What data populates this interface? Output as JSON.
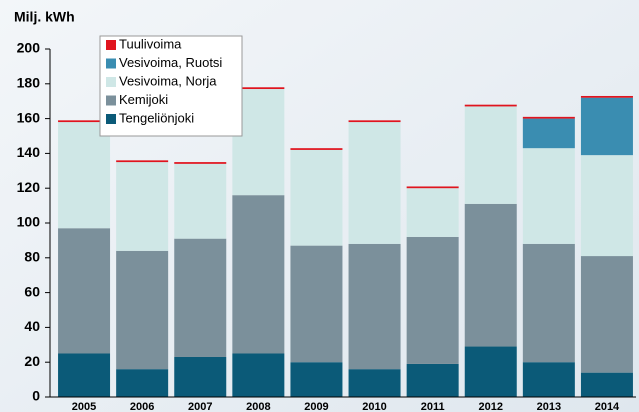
{
  "chart_data": {
    "type": "stacked_bar",
    "y_label": "Milj. kWh",
    "categories": [
      "2005",
      "2006",
      "2007",
      "2008",
      "2009",
      "2010",
      "2011",
      "2012",
      "2013",
      "2014"
    ],
    "series": [
      {
        "name": "Tengeliönjoki",
        "color": "#0b5a78",
        "values": [
          25,
          16,
          23,
          25,
          20,
          16,
          19,
          29,
          20,
          14
        ]
      },
      {
        "name": "Kemijoki",
        "color": "#7b909b",
        "values": [
          72,
          68,
          68,
          91,
          67,
          72,
          73,
          82,
          68,
          67
        ]
      },
      {
        "name": "Vesivoima, Norja",
        "color": "#cfe7e6",
        "values": [
          61,
          51,
          43,
          61,
          55,
          70,
          28,
          56,
          55,
          58
        ]
      },
      {
        "name": "Vesivoima, Ruotsi",
        "color": "#3a8db1",
        "values": [
          0,
          0,
          0,
          0,
          0,
          0,
          0,
          0,
          17,
          33
        ]
      },
      {
        "name": "Tuulivoima",
        "color": "#e0141e",
        "values": [
          1,
          1,
          1,
          1,
          1,
          1,
          1,
          1,
          1,
          1
        ]
      }
    ],
    "ylim": [
      0,
      200
    ],
    "yticks": [
      0,
      20,
      40,
      60,
      80,
      100,
      120,
      140,
      160,
      180,
      200
    ],
    "grid": false
  }
}
